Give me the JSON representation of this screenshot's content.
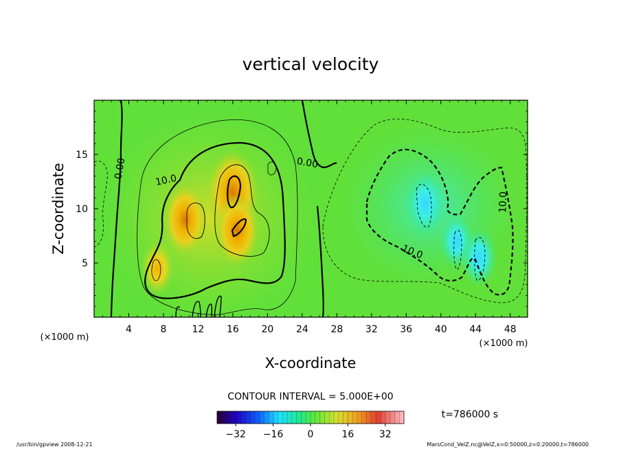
{
  "chart_data": {
    "type": "heatmap",
    "title": "vertical velocity",
    "xlabel": "X-coordinate",
    "ylabel": "Z-coordinate",
    "x_unit_label": "(×1000 m)",
    "y_unit_label": "(×1000 m)",
    "xlim": [
      0,
      50
    ],
    "ylim": [
      0,
      20
    ],
    "x_ticks": [
      4,
      8,
      12,
      16,
      20,
      24,
      28,
      32,
      36,
      40,
      44,
      48
    ],
    "y_ticks": [
      5,
      10,
      15
    ],
    "contour_interval_text": "CONTOUR INTERVAL = 5.000E+00",
    "contour_interval": 5,
    "time_text": "t=786000 s",
    "colorbar": {
      "range": [
        -40,
        40
      ],
      "ticks": [
        -32,
        -16,
        0,
        16,
        32
      ]
    },
    "contour_labels": [
      {
        "text": "0.00",
        "x": 3.0,
        "y": 13.7,
        "rotate": -80
      },
      {
        "text": "10.0",
        "x": 8.3,
        "y": 12.6,
        "rotate": -12
      },
      {
        "text": "0.00",
        "x": 24.6,
        "y": 14.2,
        "rotate": 10
      },
      {
        "text": "10.0",
        "x": 36.7,
        "y": 6.0,
        "rotate": 22
      },
      {
        "text": "10.0",
        "x": 47.2,
        "y": 10.6,
        "rotate": -88
      }
    ],
    "field_features": [
      {
        "sign": "positive",
        "x": 16.0,
        "z": 11.5,
        "peak": 28
      },
      {
        "sign": "positive",
        "x": 10.5,
        "z": 9.0,
        "peak": 22
      },
      {
        "sign": "positive",
        "x": 16.5,
        "z": 8.0,
        "peak": 22
      },
      {
        "sign": "positive",
        "x": 7.3,
        "z": 4.5,
        "peak": 14
      },
      {
        "sign": "negative",
        "x": 38.2,
        "z": 10.5,
        "peak": -18
      },
      {
        "sign": "negative",
        "x": 41.8,
        "z": 7.0,
        "peak": -14
      },
      {
        "sign": "negative",
        "x": 44.4,
        "z": 5.5,
        "peak": -16
      }
    ]
  },
  "footer": {
    "left": "/usr/bin/gpview   2008-12-21",
    "right": "MarsCond_VelZ.nc@VelZ,x=0:50000,z=0:20000,t=786000"
  }
}
